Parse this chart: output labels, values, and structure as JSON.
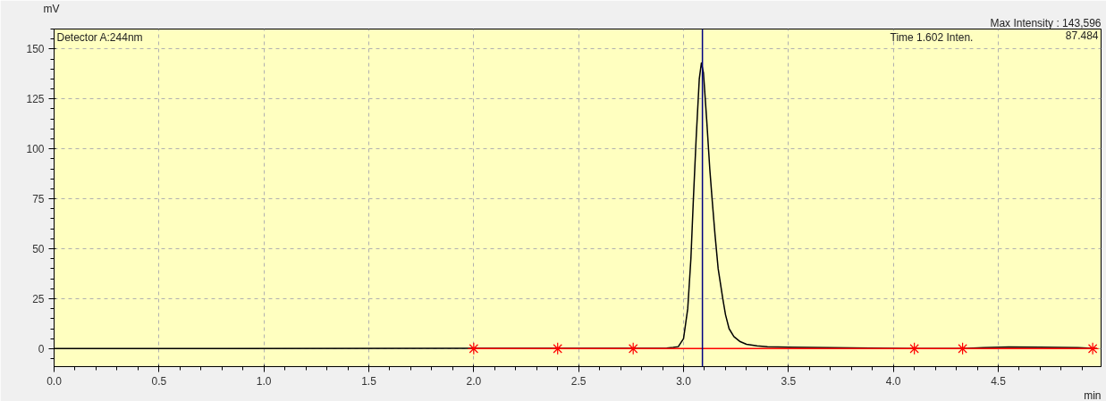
{
  "chart_data": {
    "type": "line",
    "xlabel": "min",
    "ylabel": "mV",
    "annotations": [
      "Detector A:244nm",
      "Max Intensity : 143,596",
      "Time      1.602    Inten.",
      "87.484"
    ],
    "xlim": [
      0,
      4.99
    ],
    "ylim": [
      -9,
      160
    ],
    "xticks": [
      {
        "value": 0,
        "label": "0.0"
      },
      {
        "value": 0.5,
        "label": "0.5"
      },
      {
        "value": 1,
        "label": "1.0"
      },
      {
        "value": 1.5,
        "label": "1.5"
      },
      {
        "value": 2,
        "label": "2.0"
      },
      {
        "value": 2.5,
        "label": "2.5"
      },
      {
        "value": 3,
        "label": "3.0"
      },
      {
        "value": 3.5,
        "label": "3.5"
      },
      {
        "value": 4,
        "label": "4.0"
      },
      {
        "value": 4.5,
        "label": "4.5"
      }
    ],
    "yticks": [
      0,
      25,
      50,
      75,
      100,
      125,
      150
    ],
    "grid": true,
    "series": [
      {
        "color": "#000000",
        "x": [
          0,
          2.92,
          2.95,
          2.975,
          3.0,
          3.02,
          3.035,
          3.047,
          3.06,
          3.075,
          3.085,
          3.095,
          3.11,
          3.125,
          3.136,
          3.15,
          3.165,
          3.187,
          3.2,
          3.217,
          3.24,
          3.27,
          3.3,
          3.35,
          3.4,
          3.5,
          3.6,
          4.1,
          4.33,
          4.43,
          4.55,
          4.7,
          4.88,
          4.97
        ],
        "values": [
          0,
          0.3,
          0.6,
          1,
          5,
          20,
          45,
          75,
          105,
          135,
          143,
          138,
          115,
          90,
          75,
          57,
          40,
          25,
          17,
          10,
          6,
          3.5,
          2.2,
          1.4,
          1,
          0.7,
          0.6,
          0,
          0,
          0.5,
          0.8,
          0.7,
          0.5,
          0
        ]
      },
      {
        "type": "line",
        "color": "#ff0000",
        "x": [
          2.0,
          4.97
        ],
        "values": [
          0,
          0
        ]
      },
      {
        "type": "scatter",
        "color": "#ff0000",
        "marker": "cross",
        "x": [
          2.0,
          2.4,
          2.76,
          4.1,
          4.33,
          4.95
        ],
        "values": [
          0,
          0,
          0,
          0,
          0,
          0
        ]
      }
    ],
    "ref_lines": [
      {
        "axis": "x",
        "value": 3.09,
        "color": "#000080"
      }
    ]
  }
}
